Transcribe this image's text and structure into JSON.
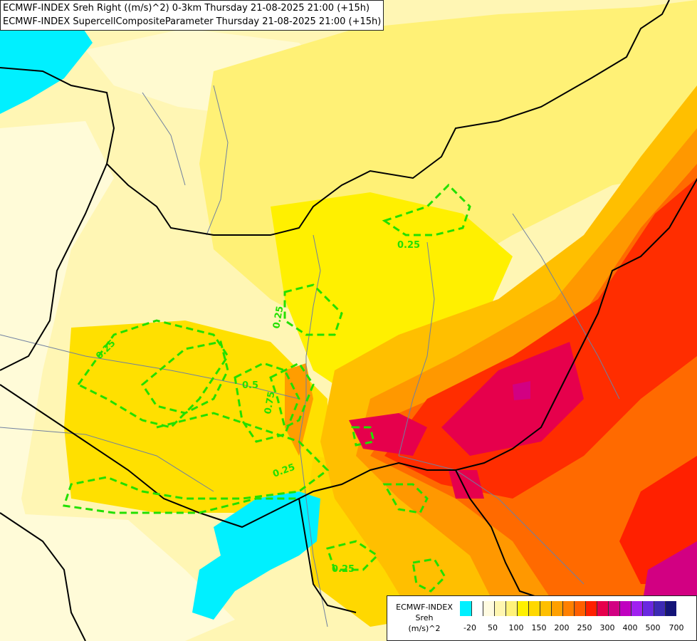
{
  "titles": {
    "line1": "ECMWF-INDEX Sreh Right ((m/s)^2) 0-3km Thursday 21-08-2025 21:00 (+15h)",
    "line2": "ECMWF-INDEX SupercellCompositeParameter Thursday 21-08-2025 21:00 (+15h)"
  },
  "legend": {
    "line1": "ECMWF-INDEX",
    "line2": "Sreh",
    "line3": "(m/s)^2",
    "colors": [
      "#00f0ff",
      "#ffffff",
      "#fffbe0",
      "#fff6b0",
      "#fff27a",
      "#fff000",
      "#ffd800",
      "#ffbf00",
      "#ffa000",
      "#ff8000",
      "#ff5f00",
      "#ff2000",
      "#e6004c",
      "#d20082",
      "#c000c0",
      "#a020f0",
      "#6a28e0",
      "#3c2ab4",
      "#141478"
    ],
    "ticks": [
      "-20",
      "50",
      "100",
      "150",
      "200",
      "250",
      "300",
      "400",
      "500",
      "700"
    ]
  },
  "contours": {
    "scp_labels": [
      "0.25",
      "0.25",
      "0.25",
      "0.5",
      "0.75",
      "0.25",
      "0.25"
    ],
    "contour_color": "#22e000"
  }
}
